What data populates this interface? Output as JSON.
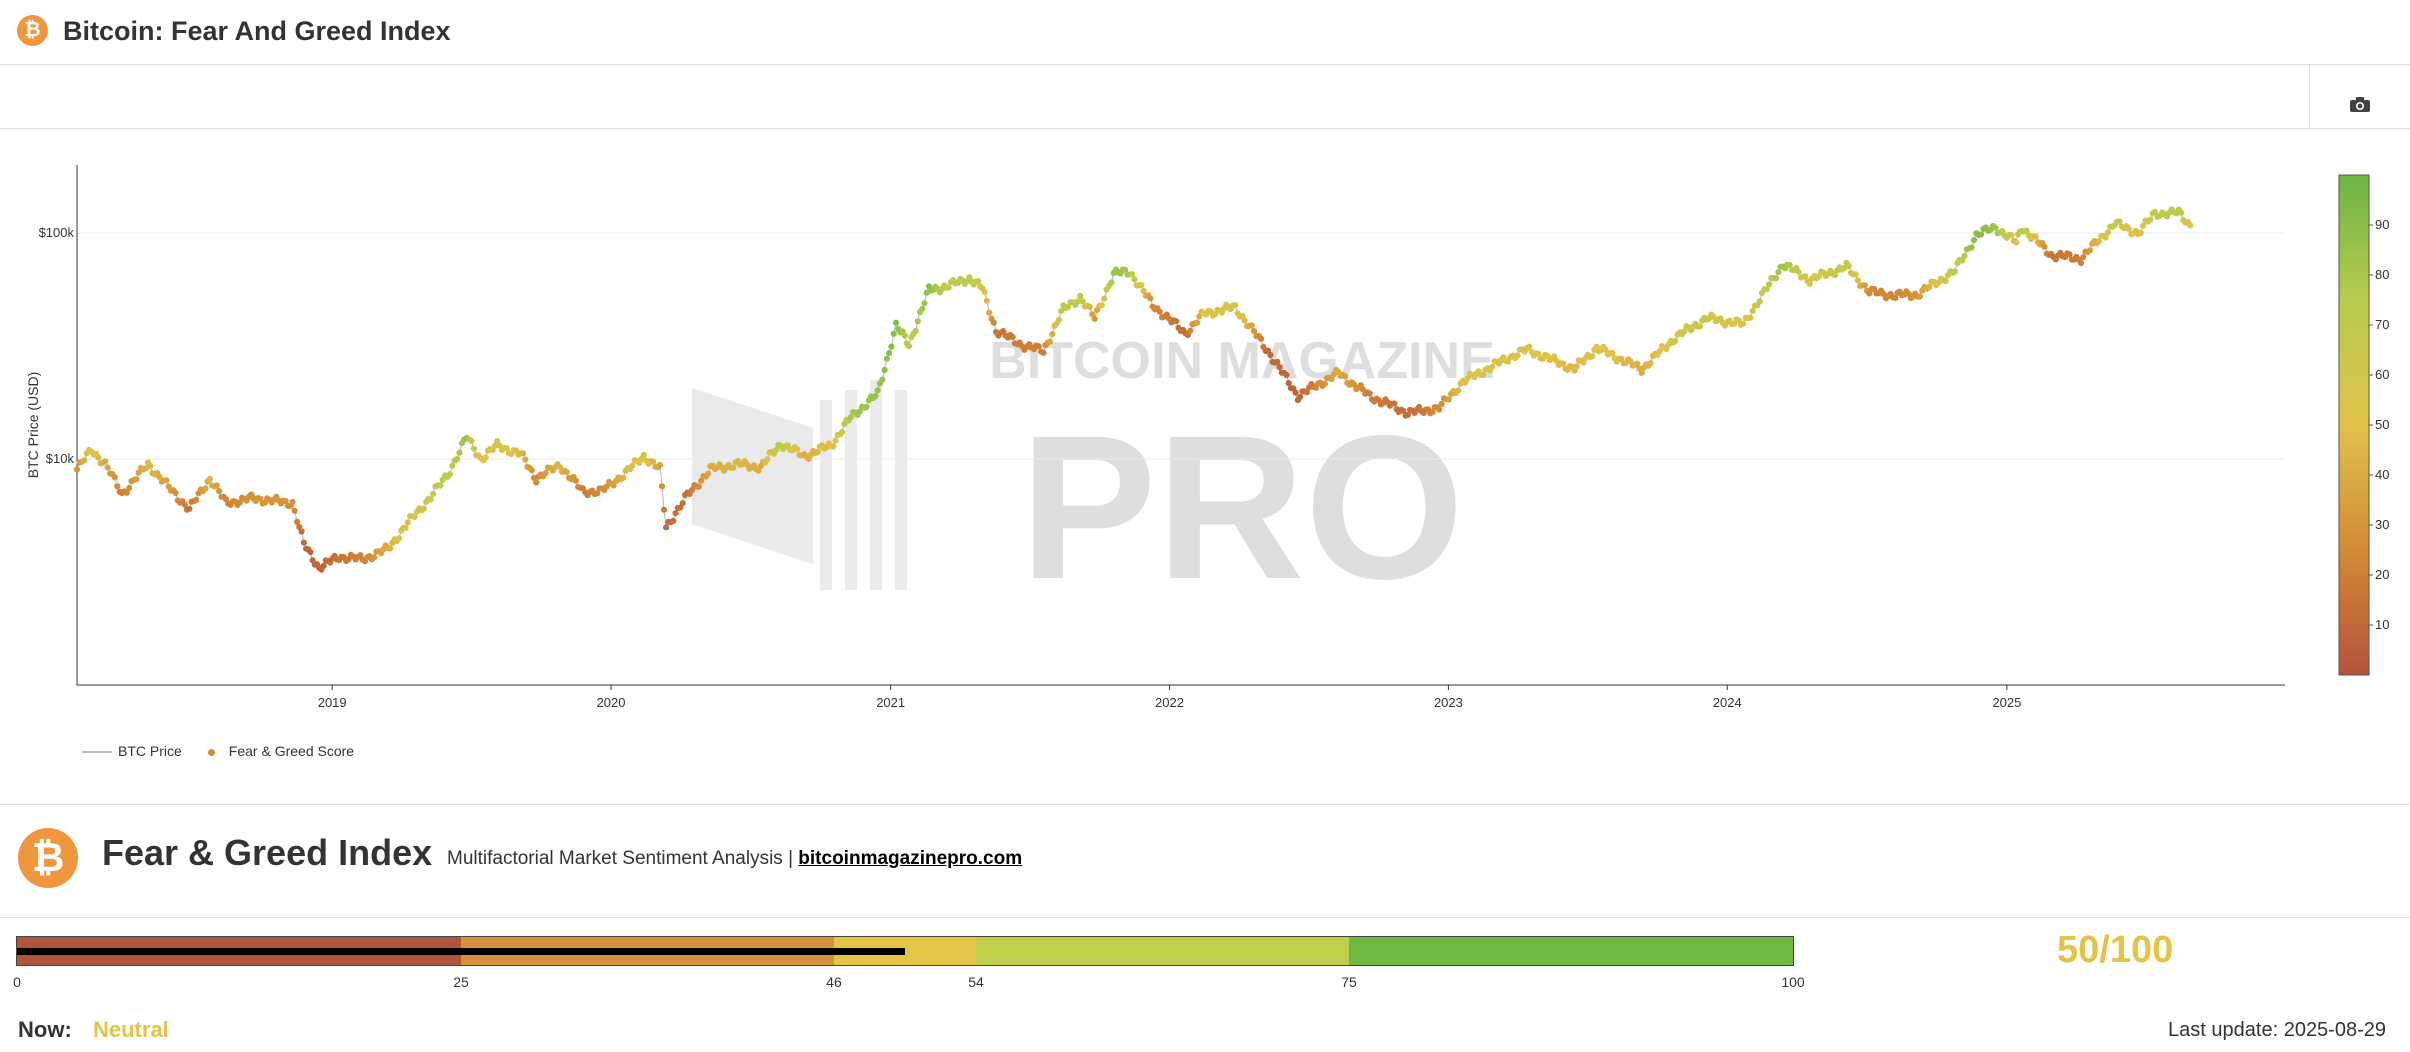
{
  "header": {
    "logo_glyph": "₿",
    "title": "Bitcoin: Fear And Greed Index",
    "icon": "bitcoin-icon"
  },
  "toolbar": {
    "camera_icon": "camera-icon"
  },
  "watermark": {
    "top": "BITCOIN MAGAZINE",
    "big": "PRO"
  },
  "chart_data": {
    "type": "scatter",
    "x_scale": "date",
    "y_scale": "log",
    "ylabel": "BTC Price (USD)",
    "xlabel": "",
    "xlim": [
      "2018-02-01",
      "2025-12-31"
    ],
    "ylim": [
      1000,
      200000
    ],
    "x_ticks": [
      "2019",
      "2020",
      "2021",
      "2022",
      "2023",
      "2024",
      "2025"
    ],
    "y_ticks": [
      {
        "value": 10000,
        "label": "$10k"
      },
      {
        "value": 100000,
        "label": "$100k"
      }
    ],
    "grid": true,
    "legend": {
      "position": "bottom-left",
      "items": [
        "BTC Price",
        "Fear & Greed Score"
      ]
    },
    "colorbar": {
      "min": 0,
      "max": 100,
      "ticks": [
        10,
        20,
        30,
        40,
        50,
        60,
        70,
        80,
        90
      ],
      "colors": [
        "#b5533a",
        "#d48a35",
        "#e0c24a",
        "#b9cc4c",
        "#6bb446"
      ]
    },
    "series": [
      {
        "name": "BTC Price",
        "points": [
          {
            "date": "2018-02-01",
            "price": 9000,
            "score": 30
          },
          {
            "date": "2018-02-20",
            "price": 11000,
            "score": 55
          },
          {
            "date": "2018-03-10",
            "price": 9500,
            "score": 40
          },
          {
            "date": "2018-04-01",
            "price": 7000,
            "score": 20
          },
          {
            "date": "2018-05-05",
            "price": 9500,
            "score": 45
          },
          {
            "date": "2018-06-01",
            "price": 7500,
            "score": 35
          },
          {
            "date": "2018-06-28",
            "price": 6000,
            "score": 15
          },
          {
            "date": "2018-07-25",
            "price": 8200,
            "score": 45
          },
          {
            "date": "2018-08-15",
            "price": 6400,
            "score": 22
          },
          {
            "date": "2018-09-20",
            "price": 6700,
            "score": 30
          },
          {
            "date": "2018-10-20",
            "price": 6500,
            "score": 30
          },
          {
            "date": "2018-11-10",
            "price": 6400,
            "score": 28
          },
          {
            "date": "2018-11-25",
            "price": 4200,
            "score": 10
          },
          {
            "date": "2018-12-15",
            "price": 3300,
            "score": 8
          },
          {
            "date": "2019-01-10",
            "price": 3700,
            "score": 15
          },
          {
            "date": "2019-02-10",
            "price": 3600,
            "score": 22
          },
          {
            "date": "2019-03-15",
            "price": 4000,
            "score": 40
          },
          {
            "date": "2019-04-10",
            "price": 5200,
            "score": 60
          },
          {
            "date": "2019-05-10",
            "price": 6800,
            "score": 65
          },
          {
            "date": "2019-06-01",
            "price": 8500,
            "score": 72
          },
          {
            "date": "2019-06-26",
            "price": 12500,
            "score": 85
          },
          {
            "date": "2019-07-15",
            "price": 10000,
            "score": 50
          },
          {
            "date": "2019-08-05",
            "price": 11500,
            "score": 60
          },
          {
            "date": "2019-09-05",
            "price": 10500,
            "score": 45
          },
          {
            "date": "2019-09-25",
            "price": 8200,
            "score": 25
          },
          {
            "date": "2019-10-26",
            "price": 9400,
            "score": 45
          },
          {
            "date": "2019-11-25",
            "price": 7200,
            "score": 20
          },
          {
            "date": "2019-12-20",
            "price": 7200,
            "score": 25
          },
          {
            "date": "2020-01-20",
            "price": 8700,
            "score": 45
          },
          {
            "date": "2020-02-13",
            "price": 10300,
            "score": 55
          },
          {
            "date": "2020-03-05",
            "price": 9000,
            "score": 35
          },
          {
            "date": "2020-03-13",
            "price": 5000,
            "score": 10
          },
          {
            "date": "2020-04-10",
            "price": 6900,
            "score": 15
          },
          {
            "date": "2020-05-10",
            "price": 9000,
            "score": 40
          },
          {
            "date": "2020-06-15",
            "price": 9500,
            "score": 45
          },
          {
            "date": "2020-07-15",
            "price": 9200,
            "score": 40
          },
          {
            "date": "2020-08-10",
            "price": 11700,
            "score": 75
          },
          {
            "date": "2020-09-10",
            "price": 10300,
            "score": 40
          },
          {
            "date": "2020-10-15",
            "price": 11500,
            "score": 50
          },
          {
            "date": "2020-11-10",
            "price": 15300,
            "score": 80
          },
          {
            "date": "2020-12-15",
            "price": 19400,
            "score": 85
          },
          {
            "date": "2021-01-08",
            "price": 39000,
            "score": 92
          },
          {
            "date": "2021-01-25",
            "price": 32000,
            "score": 70
          },
          {
            "date": "2021-02-20",
            "price": 56000,
            "score": 88
          },
          {
            "date": "2021-03-15",
            "price": 58000,
            "score": 70
          },
          {
            "date": "2021-04-14",
            "price": 63000,
            "score": 75
          },
          {
            "date": "2021-05-01",
            "price": 57000,
            "score": 60
          },
          {
            "date": "2021-05-19",
            "price": 37000,
            "score": 15
          },
          {
            "date": "2021-06-22",
            "price": 32000,
            "score": 20
          },
          {
            "date": "2021-07-20",
            "price": 30000,
            "score": 20
          },
          {
            "date": "2021-08-15",
            "price": 46000,
            "score": 70
          },
          {
            "date": "2021-09-06",
            "price": 52000,
            "score": 75
          },
          {
            "date": "2021-09-25",
            "price": 42000,
            "score": 30
          },
          {
            "date": "2021-10-20",
            "price": 66000,
            "score": 85
          },
          {
            "date": "2021-11-10",
            "price": 67500,
            "score": 80
          },
          {
            "date": "2021-12-10",
            "price": 48000,
            "score": 25
          },
          {
            "date": "2022-01-22",
            "price": 36000,
            "score": 12
          },
          {
            "date": "2022-02-15",
            "price": 44000,
            "score": 50
          },
          {
            "date": "2022-03-28",
            "price": 47000,
            "score": 60
          },
          {
            "date": "2022-05-10",
            "price": 30000,
            "score": 10
          },
          {
            "date": "2022-06-18",
            "price": 19000,
            "score": 8
          },
          {
            "date": "2022-08-10",
            "price": 24000,
            "score": 40
          },
          {
            "date": "2022-09-20",
            "price": 19000,
            "score": 20
          },
          {
            "date": "2022-11-09",
            "price": 16000,
            "score": 12
          },
          {
            "date": "2022-12-20",
            "price": 16800,
            "score": 25
          },
          {
            "date": "2023-01-20",
            "price": 22000,
            "score": 50
          },
          {
            "date": "2023-03-20",
            "price": 28000,
            "score": 55
          },
          {
            "date": "2023-04-14",
            "price": 30500,
            "score": 55
          },
          {
            "date": "2023-06-15",
            "price": 25000,
            "score": 45
          },
          {
            "date": "2023-07-14",
            "price": 31000,
            "score": 55
          },
          {
            "date": "2023-09-11",
            "price": 25000,
            "score": 40
          },
          {
            "date": "2023-10-25",
            "price": 34500,
            "score": 60
          },
          {
            "date": "2023-12-05",
            "price": 42000,
            "score": 65
          },
          {
            "date": "2024-01-22",
            "price": 39500,
            "score": 50
          },
          {
            "date": "2024-03-14",
            "price": 73000,
            "score": 85
          },
          {
            "date": "2024-04-18",
            "price": 62000,
            "score": 55
          },
          {
            "date": "2024-06-05",
            "price": 71000,
            "score": 70
          },
          {
            "date": "2024-07-05",
            "price": 55000,
            "score": 25
          },
          {
            "date": "2024-08-05",
            "price": 53000,
            "score": 22
          },
          {
            "date": "2024-09-06",
            "price": 53500,
            "score": 30
          },
          {
            "date": "2024-10-25",
            "price": 68000,
            "score": 70
          },
          {
            "date": "2024-11-22",
            "price": 98000,
            "score": 90
          },
          {
            "date": "2024-12-17",
            "price": 106000,
            "score": 85
          },
          {
            "date": "2025-01-13",
            "price": 91000,
            "score": 55
          },
          {
            "date": "2025-01-21",
            "price": 106000,
            "score": 75
          },
          {
            "date": "2025-02-28",
            "price": 80000,
            "score": 15
          },
          {
            "date": "2025-04-08",
            "price": 77000,
            "score": 20
          },
          {
            "date": "2025-05-22",
            "price": 110000,
            "score": 70
          },
          {
            "date": "2025-06-22",
            "price": 100000,
            "score": 45
          },
          {
            "date": "2025-07-14",
            "price": 122000,
            "score": 75
          },
          {
            "date": "2025-08-14",
            "price": 123000,
            "score": 70
          },
          {
            "date": "2025-08-29",
            "price": 108000,
            "score": 50
          }
        ]
      }
    ]
  },
  "bottom": {
    "logo_glyph": "₿",
    "title": "Fear & Greed Index",
    "subtitle": "Multifactorial Market Sentiment Analysis |",
    "link": "bitcoinmagazinepro.com",
    "gauge": {
      "ticks": [
        "0",
        "25",
        "46",
        "54",
        "75",
        "100"
      ],
      "segments": [
        {
          "from": 0,
          "to": 25,
          "color": "#b0543a"
        },
        {
          "from": 25,
          "to": 46,
          "color": "#d6903e"
        },
        {
          "from": 46,
          "to": 54,
          "color": "#e3c446"
        },
        {
          "from": 54,
          "to": 75,
          "color": "#bfcf4c"
        },
        {
          "from": 75,
          "to": 100,
          "color": "#6fb843"
        }
      ],
      "value": 50
    },
    "score_text": "50/100",
    "now_label": "Now:",
    "now_value": "Neutral",
    "updated": "Last update: 2025-08-29"
  }
}
